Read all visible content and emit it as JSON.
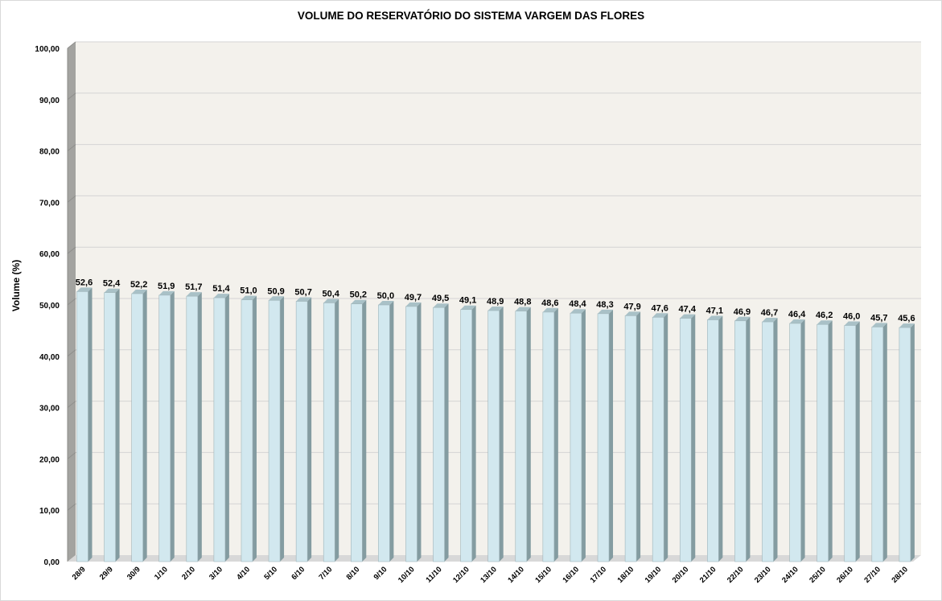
{
  "chart_data": {
    "type": "bar",
    "title": "VOLUME DO RESERVATÓRIO DO SISTEMA VARGEM DAS FLORES",
    "xlabel": "",
    "ylabel": "Volume (%)",
    "ylim": [
      0,
      100
    ],
    "ytick_step": 10,
    "grid": true,
    "legend": "none",
    "categories": [
      "28/9",
      "29/9",
      "30/9",
      "1/10",
      "2/10",
      "3/10",
      "4/10",
      "5/10",
      "6/10",
      "7/10",
      "8/10",
      "9/10",
      "10/10",
      "11/10",
      "12/10",
      "13/10",
      "14/10",
      "15/10",
      "16/10",
      "17/10",
      "18/10",
      "19/10",
      "20/10",
      "21/10",
      "22/10",
      "23/10",
      "24/10",
      "25/10",
      "26/10",
      "27/10",
      "28/10"
    ],
    "values": [
      52.6,
      52.4,
      52.2,
      51.9,
      51.7,
      51.4,
      51.0,
      50.9,
      50.7,
      50.4,
      50.2,
      50.0,
      49.7,
      49.5,
      49.1,
      48.9,
      48.8,
      48.6,
      48.4,
      48.3,
      47.9,
      47.6,
      47.4,
      47.1,
      46.9,
      46.7,
      46.4,
      46.2,
      46.0,
      45.7,
      45.6
    ],
    "colors": {
      "bar_front": "#d2e8ef",
      "bar_side": "#849ca1",
      "bar_top": "#a9c1c7",
      "bar_outline": "#9fb4b9",
      "plot_back": "#f3f1ec",
      "wall_side": "#a3a3a0",
      "wall_shadow": "#8c8c89",
      "floor": "#d8d8d8",
      "gridline": "#d4d4d4"
    }
  }
}
